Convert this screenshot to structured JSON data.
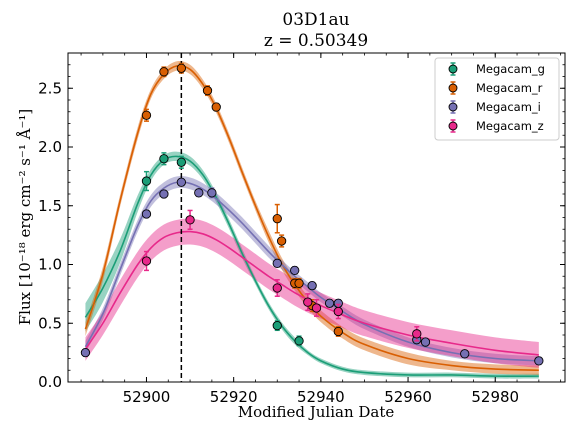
{
  "chart_data": {
    "type": "line",
    "title": "03D1au",
    "subtitle": "z = 0.50349",
    "xlabel": "Modified Julian Date",
    "ylabel": "Flux [10⁻¹⁸ erg cm⁻² s⁻¹ Å⁻¹]",
    "xlim": [
      52882,
      52996
    ],
    "ylim": [
      0,
      2.8
    ],
    "x_ticks": [
      52900,
      52920,
      52940,
      52960,
      52980
    ],
    "y_ticks": [
      0.0,
      0.5,
      1.0,
      1.5,
      2.0,
      2.5
    ],
    "x_tick_labels": [
      "52900",
      "52920",
      "52940",
      "52960",
      "52980"
    ],
    "y_tick_labels": [
      "0.0",
      "0.5",
      "1.0",
      "1.5",
      "2.0",
      "2.5"
    ],
    "peak_date_line": 52908,
    "legend_position": "top-right",
    "series": [
      {
        "name": "Megacam_g",
        "color": "#1b9e77",
        "points": [
          {
            "x": 52900,
            "y": 1.71,
            "err": 0.08
          },
          {
            "x": 52904,
            "y": 1.9,
            "err": 0.05
          },
          {
            "x": 52908,
            "y": 1.87,
            "err": 0.05
          },
          {
            "x": 52930,
            "y": 0.48,
            "err": 0.04
          },
          {
            "x": 52935,
            "y": 0.35,
            "err": 0.04
          }
        ],
        "model": [
          [
            52886,
            0.55
          ],
          [
            52890,
            0.8
          ],
          [
            52894,
            1.12
          ],
          [
            52898,
            1.52
          ],
          [
            52901,
            1.76
          ],
          [
            52904,
            1.89
          ],
          [
            52907,
            1.92
          ],
          [
            52910,
            1.88
          ],
          [
            52913,
            1.76
          ],
          [
            52916,
            1.57
          ],
          [
            52919,
            1.34
          ],
          [
            52922,
            1.09
          ],
          [
            52925,
            0.86
          ],
          [
            52928,
            0.65
          ],
          [
            52931,
            0.48
          ],
          [
            52934,
            0.35
          ],
          [
            52937,
            0.25
          ],
          [
            52940,
            0.18
          ],
          [
            52945,
            0.11
          ],
          [
            52950,
            0.08
          ],
          [
            52960,
            0.06
          ],
          [
            52970,
            0.06
          ],
          [
            52980,
            0.05
          ],
          [
            52990,
            0.05
          ]
        ],
        "band": [
          0.12,
          0.12,
          0.1,
          0.07,
          0.05,
          0.04,
          0.04,
          0.04,
          0.04,
          0.04,
          0.04,
          0.04,
          0.03,
          0.03,
          0.03,
          0.03,
          0.02,
          0.02,
          0.02,
          0.02,
          0.02,
          0.02,
          0.02,
          0.02
        ]
      },
      {
        "name": "Megacam_r",
        "color": "#d95f02",
        "points": [
          {
            "x": 52900,
            "y": 2.27,
            "err": 0.05
          },
          {
            "x": 52904,
            "y": 2.64,
            "err": 0.04
          },
          {
            "x": 52908,
            "y": 2.67,
            "err": 0.04
          },
          {
            "x": 52914,
            "y": 2.48,
            "err": 0.04
          },
          {
            "x": 52916,
            "y": 2.34,
            "err": 0.03
          },
          {
            "x": 52930,
            "y": 1.39,
            "err": 0.12
          },
          {
            "x": 52931,
            "y": 1.2,
            "err": 0.05
          },
          {
            "x": 52934,
            "y": 0.84,
            "err": 0.04
          },
          {
            "x": 52935,
            "y": 0.84,
            "err": 0.04
          },
          {
            "x": 52938,
            "y": 0.65,
            "err": 0.05
          },
          {
            "x": 52944,
            "y": 0.43,
            "err": 0.04
          }
        ],
        "model": [
          [
            52886,
            0.45
          ],
          [
            52890,
            0.92
          ],
          [
            52894,
            1.55
          ],
          [
            52898,
            2.12
          ],
          [
            52901,
            2.45
          ],
          [
            52904,
            2.62
          ],
          [
            52907,
            2.69
          ],
          [
            52910,
            2.66
          ],
          [
            52913,
            2.53
          ],
          [
            52916,
            2.33
          ],
          [
            52919,
            2.07
          ],
          [
            52922,
            1.78
          ],
          [
            52925,
            1.5
          ],
          [
            52928,
            1.24
          ],
          [
            52931,
            1.01
          ],
          [
            52934,
            0.83
          ],
          [
            52937,
            0.68
          ],
          [
            52940,
            0.56
          ],
          [
            52945,
            0.42
          ],
          [
            52950,
            0.32
          ],
          [
            52960,
            0.2
          ],
          [
            52970,
            0.14
          ],
          [
            52980,
            0.11
          ],
          [
            52990,
            0.1
          ]
        ],
        "band": [
          0.06,
          0.06,
          0.05,
          0.05,
          0.04,
          0.04,
          0.04,
          0.04,
          0.04,
          0.04,
          0.04,
          0.04,
          0.04,
          0.05,
          0.05,
          0.05,
          0.05,
          0.05,
          0.05,
          0.05,
          0.05,
          0.04,
          0.04,
          0.04
        ]
      },
      {
        "name": "Megacam_i",
        "color": "#7570b3",
        "points": [
          {
            "x": 52886,
            "y": 0.25,
            "err": 0.03
          },
          {
            "x": 52900,
            "y": 1.43,
            "err": 0.03
          },
          {
            "x": 52904,
            "y": 1.6,
            "err": 0.03
          },
          {
            "x": 52908,
            "y": 1.7,
            "err": 0.03
          },
          {
            "x": 52912,
            "y": 1.61,
            "err": 0.03
          },
          {
            "x": 52915,
            "y": 1.61,
            "err": 0.04
          },
          {
            "x": 52930,
            "y": 1.01,
            "err": 0.03
          },
          {
            "x": 52934,
            "y": 0.95,
            "err": 0.03
          },
          {
            "x": 52938,
            "y": 0.82,
            "err": 0.03
          },
          {
            "x": 52942,
            "y": 0.67,
            "err": 0.03
          },
          {
            "x": 52944,
            "y": 0.67,
            "err": 0.03
          },
          {
            "x": 52962,
            "y": 0.36,
            "err": 0.03
          },
          {
            "x": 52964,
            "y": 0.34,
            "err": 0.03
          },
          {
            "x": 52973,
            "y": 0.24,
            "err": 0.03
          },
          {
            "x": 52990,
            "y": 0.18,
            "err": 0.03
          }
        ],
        "model": [
          [
            52886,
            0.3
          ],
          [
            52890,
            0.58
          ],
          [
            52894,
            0.96
          ],
          [
            52898,
            1.33
          ],
          [
            52901,
            1.54
          ],
          [
            52904,
            1.65
          ],
          [
            52907,
            1.7
          ],
          [
            52910,
            1.69
          ],
          [
            52913,
            1.64
          ],
          [
            52916,
            1.56
          ],
          [
            52919,
            1.46
          ],
          [
            52922,
            1.35
          ],
          [
            52925,
            1.23
          ],
          [
            52928,
            1.11
          ],
          [
            52931,
            1.0
          ],
          [
            52934,
            0.9
          ],
          [
            52937,
            0.81
          ],
          [
            52940,
            0.72
          ],
          [
            52945,
            0.6
          ],
          [
            52950,
            0.49
          ],
          [
            52960,
            0.34
          ],
          [
            52970,
            0.25
          ],
          [
            52980,
            0.2
          ],
          [
            52990,
            0.18
          ]
        ],
        "band": [
          0.05,
          0.05,
          0.05,
          0.05,
          0.05,
          0.05,
          0.05,
          0.05,
          0.05,
          0.05,
          0.05,
          0.05,
          0.05,
          0.05,
          0.04,
          0.04,
          0.04,
          0.04,
          0.04,
          0.04,
          0.04,
          0.04,
          0.04,
          0.04
        ]
      },
      {
        "name": "Megacam_z",
        "color": "#e7298a",
        "points": [
          {
            "x": 52900,
            "y": 1.03,
            "err": 0.08
          },
          {
            "x": 52910,
            "y": 1.38,
            "err": 0.08
          },
          {
            "x": 52930,
            "y": 0.8,
            "err": 0.07
          },
          {
            "x": 52937,
            "y": 0.68,
            "err": 0.07
          },
          {
            "x": 52939,
            "y": 0.63,
            "err": 0.07
          },
          {
            "x": 52944,
            "y": 0.6,
            "err": 0.06
          },
          {
            "x": 52962,
            "y": 0.41,
            "err": 0.06
          }
        ],
        "model": [
          [
            52886,
            0.28
          ],
          [
            52890,
            0.5
          ],
          [
            52894,
            0.76
          ],
          [
            52898,
            1.0
          ],
          [
            52901,
            1.14
          ],
          [
            52904,
            1.23
          ],
          [
            52907,
            1.27
          ],
          [
            52910,
            1.28
          ],
          [
            52913,
            1.26
          ],
          [
            52916,
            1.21
          ],
          [
            52919,
            1.14
          ],
          [
            52922,
            1.06
          ],
          [
            52925,
            0.98
          ],
          [
            52928,
            0.9
          ],
          [
            52931,
            0.83
          ],
          [
            52934,
            0.76
          ],
          [
            52937,
            0.7
          ],
          [
            52940,
            0.65
          ],
          [
            52945,
            0.57
          ],
          [
            52950,
            0.5
          ],
          [
            52960,
            0.4
          ],
          [
            52970,
            0.33
          ],
          [
            52980,
            0.27
          ],
          [
            52990,
            0.23
          ]
        ],
        "band": [
          0.1,
          0.1,
          0.11,
          0.11,
          0.11,
          0.11,
          0.11,
          0.11,
          0.11,
          0.11,
          0.11,
          0.11,
          0.11,
          0.11,
          0.11,
          0.11,
          0.11,
          0.11,
          0.11,
          0.11,
          0.11,
          0.11,
          0.11,
          0.11
        ]
      }
    ]
  }
}
